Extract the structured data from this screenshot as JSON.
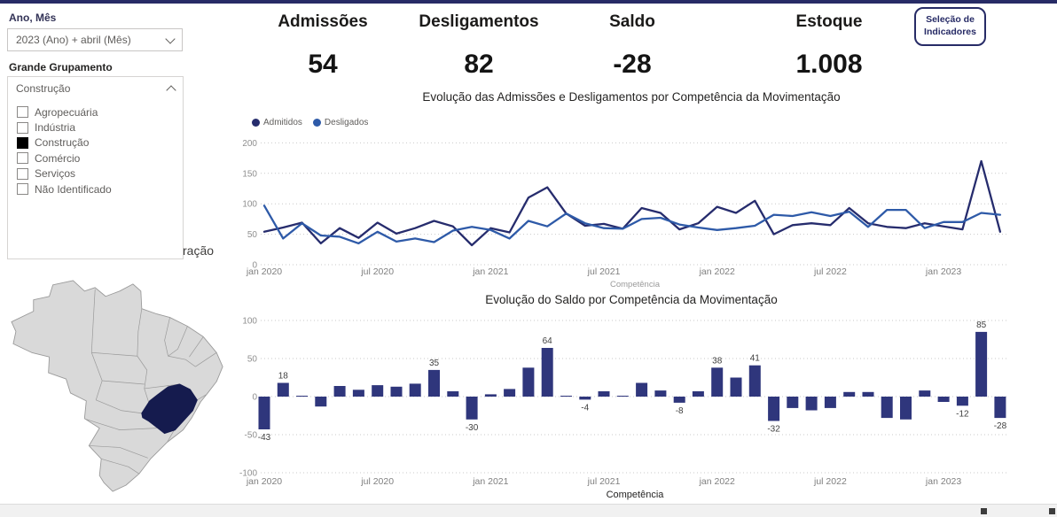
{
  "sidebar": {
    "year_filter": {
      "label": "Ano, Mês",
      "value": "2023 (Ano) + abril (Mês)"
    },
    "group_filter": {
      "label": "Grande Grupamento",
      "selected": "Construção",
      "options": [
        {
          "label": "Agropecuária",
          "checked": false
        },
        {
          "label": "Indústria",
          "checked": false
        },
        {
          "label": "Construção",
          "checked": true
        },
        {
          "label": "Comércio",
          "checked": false
        },
        {
          "label": "Serviços",
          "checked": false
        },
        {
          "label": "Não Identificado",
          "checked": false
        }
      ]
    },
    "clipped_text": "ração",
    "map": {
      "highlighted_state": "Minas Gerais",
      "colors": {
        "highlight": "#151b4e",
        "state_fill": "#d9d9d9",
        "state_stroke": "#9a9a9a"
      }
    }
  },
  "kpis": [
    {
      "label": "Admissões",
      "value": "54"
    },
    {
      "label": "Desligamentos",
      "value": "82"
    },
    {
      "label": "Saldo",
      "value": "-28"
    },
    {
      "label": "Estoque",
      "value": "1.008"
    }
  ],
  "selection_button": {
    "line1": "Seleção de",
    "line2": "Indicadores"
  },
  "chart_data": [
    {
      "type": "line",
      "title": "Evolução das Admissões e Desligamentos por Competência da Movimentação",
      "xlabel": "Competência",
      "ylim": [
        0,
        200
      ],
      "yticks": [
        0,
        50,
        100,
        150,
        200
      ],
      "grid": "dotted-horizontal",
      "legend_position": "top-left",
      "x_tick_labels": [
        "jan 2020",
        "jul 2020",
        "jan 2021",
        "jul 2021",
        "jan 2022",
        "jul 2022",
        "jan 2023"
      ],
      "x": [
        "jan 2020",
        "fev 2020",
        "mar 2020",
        "abr 2020",
        "mai 2020",
        "jun 2020",
        "jul 2020",
        "ago 2020",
        "set 2020",
        "out 2020",
        "nov 2020",
        "dez 2020",
        "jan 2021",
        "fev 2021",
        "mar 2021",
        "abr 2021",
        "mai 2021",
        "jun 2021",
        "jul 2021",
        "ago 2021",
        "set 2021",
        "out 2021",
        "nov 2021",
        "dez 2021",
        "jan 2022",
        "fev 2022",
        "mar 2022",
        "abr 2022",
        "mai 2022",
        "jun 2022",
        "jul 2022",
        "ago 2022",
        "set 2022",
        "out 2022",
        "nov 2022",
        "dez 2022",
        "jan 2023",
        "fev 2023",
        "mar 2023",
        "abr 2023"
      ],
      "series": [
        {
          "name": "Admitidos",
          "color": "#262c6d",
          "values": [
            54,
            61,
            69,
            35,
            60,
            44,
            69,
            51,
            60,
            72,
            63,
            32,
            60,
            53,
            110,
            127,
            84,
            64,
            67,
            59,
            93,
            85,
            58,
            68,
            95,
            85,
            105,
            50,
            65,
            68,
            65,
            93,
            68,
            62,
            60,
            68,
            63,
            58,
            170,
            54
          ]
        },
        {
          "name": "Desligados",
          "color": "#2e5aa8",
          "values": [
            97,
            43,
            68,
            48,
            46,
            35,
            54,
            38,
            43,
            37,
            56,
            62,
            57,
            43,
            72,
            63,
            84,
            68,
            60,
            59,
            75,
            77,
            66,
            61,
            57,
            60,
            64,
            82,
            80,
            86,
            80,
            87,
            62,
            90,
            90,
            60,
            70,
            70,
            85,
            82
          ]
        }
      ]
    },
    {
      "type": "bar",
      "title": "Evolução do Saldo por Competência da Movimentação",
      "xlabel": "Competência",
      "ylim": [
        -100,
        100
      ],
      "yticks": [
        -100,
        -50,
        0,
        50,
        100
      ],
      "grid": "dotted-horizontal",
      "bar_color": "#2f367c",
      "x_tick_labels": [
        "jan 2020",
        "jul 2020",
        "jan 2021",
        "jul 2021",
        "jan 2022",
        "jul 2022",
        "jan 2023"
      ],
      "x": [
        "jan 2020",
        "fev 2020",
        "mar 2020",
        "abr 2020",
        "mai 2020",
        "jun 2020",
        "jul 2020",
        "ago 2020",
        "set 2020",
        "out 2020",
        "nov 2020",
        "dez 2020",
        "jan 2021",
        "fev 2021",
        "mar 2021",
        "abr 2021",
        "mai 2021",
        "jun 2021",
        "jul 2021",
        "ago 2021",
        "set 2021",
        "out 2021",
        "nov 2021",
        "dez 2021",
        "jan 2022",
        "fev 2022",
        "mar 2022",
        "abr 2022",
        "mai 2022",
        "jun 2022",
        "jul 2022",
        "ago 2022",
        "set 2022",
        "out 2022",
        "nov 2022",
        "dez 2022",
        "jan 2023",
        "fev 2023",
        "mar 2023",
        "abr 2023"
      ],
      "values": [
        -43,
        18,
        1,
        -13,
        14,
        9,
        15,
        13,
        17,
        35,
        7,
        -30,
        3,
        10,
        38,
        64,
        0,
        -4,
        7,
        0,
        18,
        8,
        -8,
        7,
        38,
        25,
        41,
        -32,
        -15,
        -18,
        -15,
        6,
        6,
        -28,
        -30,
        8,
        -7,
        -12,
        85,
        -28
      ],
      "data_label_indices": [
        0,
        1,
        9,
        11,
        15,
        17,
        22,
        24,
        26,
        27,
        37,
        38,
        39
      ]
    }
  ]
}
